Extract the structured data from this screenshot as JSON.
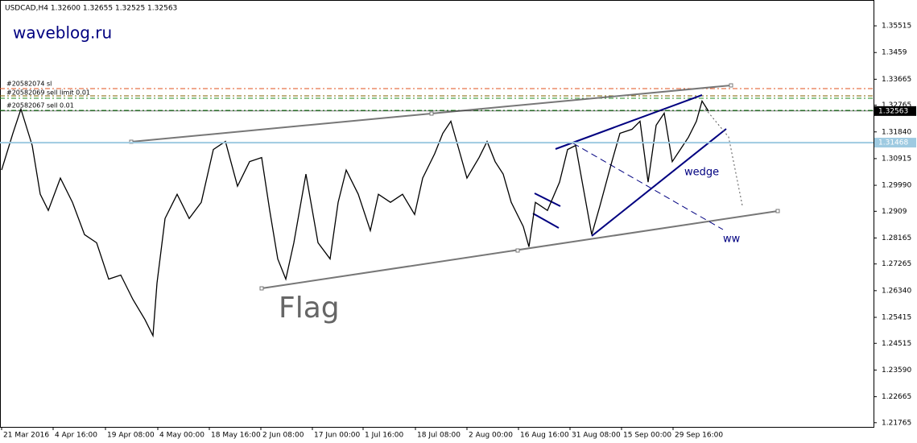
{
  "chart_data": {
    "type": "line",
    "title": "USDCAD,H4  1.32600 1.32655 1.32525 1.32563",
    "watermark": "waveblog.ru",
    "annotations": {
      "flag": "Flag",
      "wedge": "wedge",
      "ww": "ww",
      "orders": [
        "#20582074 sl",
        "#20582069 sell limit 0.01",
        "#20582067 sell 0.01"
      ]
    },
    "levels": [
      {
        "value": 1.32563,
        "label": "1.32563",
        "color": "#000000"
      },
      {
        "value": 1.31468,
        "label": "1.31468",
        "color": "#9ecae1"
      }
    ],
    "series": [
      {
        "name": "USDCAD",
        "color": "#000000",
        "x": [
          0,
          14,
          24,
          38,
          48,
          58,
          73,
          88,
          103,
          118,
          133,
          148,
          163,
          178,
          188,
          193,
          203,
          218,
          233,
          248,
          263,
          278,
          293,
          308,
          323,
          333,
          343,
          353,
          363,
          378,
          393,
          408,
          418,
          428,
          443,
          458,
          468,
          483,
          498,
          513,
          523,
          538,
          548,
          558,
          568,
          578,
          593,
          603,
          613,
          623,
          633,
          648,
          655,
          663,
          678,
          693,
          703,
          713,
          723,
          733,
          743,
          758,
          768,
          783,
          793,
          803,
          813,
          823,
          833,
          843,
          853,
          863,
          870,
          878
        ],
        "values": [
          1.3052,
          1.3179,
          1.3263,
          1.3137,
          1.2968,
          1.2912,
          1.3024,
          1.294,
          1.2828,
          1.28,
          1.2674,
          1.2688,
          1.2604,
          1.2534,
          1.2478,
          1.266,
          1.2884,
          1.2968,
          1.2884,
          1.294,
          1.3123,
          1.3151,
          1.2996,
          1.3081,
          1.3095,
          1.2912,
          1.2744,
          1.2674,
          1.28,
          1.3038,
          1.28,
          1.2744,
          1.294,
          1.3052,
          1.2968,
          1.2842,
          1.2968,
          1.294,
          1.2968,
          1.2898,
          1.3024,
          1.3109,
          1.3179,
          1.3221,
          1.3123,
          1.3024,
          1.3095,
          1.3151,
          1.3081,
          1.3038,
          1.294,
          1.2856,
          1.2786,
          1.294,
          1.2912,
          1.301,
          1.3123,
          1.3137,
          1.2982,
          1.2828,
          1.2926,
          1.3081,
          1.3179,
          1.3193,
          1.3221,
          1.301,
          1.3207,
          1.3249,
          1.3081,
          1.3123,
          1.3165,
          1.3221,
          1.3291,
          1.3256
        ]
      }
    ],
    "xlim": [
      -2,
      1083
    ],
    "ylim": [
      1.2162,
      1.3641
    ],
    "xticks": [
      {
        "value": 0,
        "label": "21 Mar 2016"
      },
      {
        "value": 64,
        "label": "4 Apr 16:00"
      },
      {
        "value": 129,
        "label": "19 Apr 08:00"
      },
      {
        "value": 194,
        "label": "4 May 00:00"
      },
      {
        "value": 258,
        "label": "18 May 16:00"
      },
      {
        "value": 322,
        "label": "2 Jun 08:00"
      },
      {
        "value": 386,
        "label": "17 Jun 00:00"
      },
      {
        "value": 449,
        "label": "1 Jul 16:00"
      },
      {
        "value": 514,
        "label": "18 Jul 08:00"
      },
      {
        "value": 578,
        "label": "2 Aug 00:00"
      },
      {
        "value": 642,
        "label": "16 Aug 16:00"
      },
      {
        "value": 706,
        "label": "31 Aug 08:00"
      },
      {
        "value": 770,
        "label": "15 Sep 00:00"
      },
      {
        "value": 834,
        "label": "29 Sep 16:00"
      }
    ],
    "yticks": [
      1.35515,
      1.3459,
      1.33665,
      1.32765,
      {
        "value": 1.3184,
        "label": "1.31840"
      },
      1.30915,
      {
        "value": 1.2999,
        "label": "1.29990"
      },
      1.2909,
      1.28165,
      1.27265,
      {
        "value": 1.2634,
        "label": "1.26340"
      },
      1.25415,
      1.24515,
      {
        "value": 1.2359,
        "label": "1.23590"
      },
      1.22665,
      1.21765
    ]
  }
}
